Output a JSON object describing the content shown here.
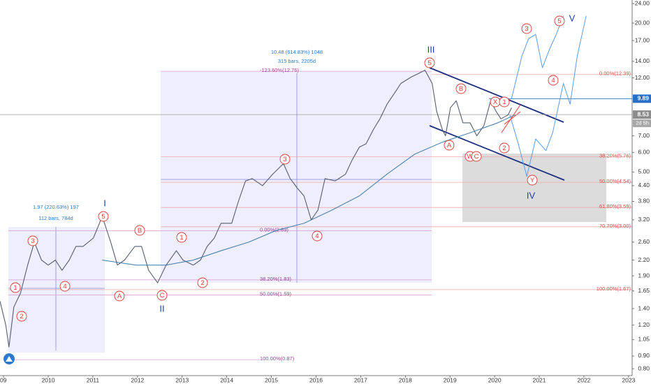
{
  "chart_data": {
    "type": "line",
    "log_y": true,
    "xlim": [
      2008.92,
      2023.08
    ],
    "ylim": [
      0.75,
      24.8
    ],
    "xticks": [
      {
        "value": 2009,
        "label": "09"
      },
      2010,
      2011,
      2012,
      2013,
      2014,
      2015,
      2016,
      2017,
      2018,
      2019,
      2020,
      2021,
      2022,
      2023
    ],
    "yticks": [
      {
        "value": 24,
        "label": "24.00"
      },
      {
        "value": 20,
        "label": "20.00"
      },
      {
        "value": 17,
        "label": "17.00"
      },
      {
        "value": 14,
        "label": "14.00"
      },
      {
        "value": 12,
        "label": "12.00"
      },
      {
        "value": 7,
        "label": "7.00"
      },
      {
        "value": 6,
        "label": "6.00"
      },
      {
        "value": 5,
        "label": "5.00"
      },
      {
        "value": 4.4,
        "label": "4.40"
      },
      {
        "value": 3.8,
        "label": "3.80"
      },
      {
        "value": 3.2,
        "label": "3.20"
      },
      {
        "value": 2.6,
        "label": "2.60"
      },
      {
        "value": 2.2,
        "label": "2.20"
      },
      {
        "value": 1.9,
        "label": "1.90"
      },
      {
        "value": 1.65,
        "label": "1.65"
      },
      {
        "value": 1.4,
        "label": "1.40"
      },
      {
        "value": 1.2,
        "label": "1.20"
      },
      {
        "value": 1.05,
        "label": "1.05"
      },
      {
        "value": 0.9,
        "label": "0.90"
      },
      {
        "value": 0.8,
        "label": "0.80"
      }
    ],
    "series": [
      {
        "color": "#555d70",
        "x": [
          2008.92,
          2009.05,
          2009.12,
          2009.23,
          2009.38,
          2009.54,
          2009.69,
          2009.85,
          2010.0,
          2010.16,
          2010.31,
          2010.47,
          2010.62,
          2010.78,
          2011.01,
          2011.21,
          2011.4,
          2011.55,
          2011.71,
          2011.94,
          2012.09,
          2012.25,
          2012.45,
          2012.64,
          2012.87,
          2013.02,
          2013.25,
          2013.41,
          2013.56,
          2013.72,
          2013.87,
          2014.11,
          2014.26,
          2014.42,
          2014.57,
          2014.8,
          2015.03,
          2015.27,
          2015.42,
          2015.58,
          2015.73,
          2015.89,
          2016.04,
          2016.2,
          2016.43,
          2016.66,
          2016.81,
          2016.97,
          2017.12,
          2017.28,
          2017.43,
          2017.59,
          2017.74,
          2017.9,
          2018.13,
          2018.29,
          2018.44,
          2018.6,
          2018.7,
          2018.83,
          2018.9,
          2019.01,
          2019.14,
          2019.29,
          2019.45,
          2019.6,
          2019.76,
          2019.91,
          2020.03,
          2020.14,
          2020.3,
          2020.38
        ],
        "values": [
          1.5,
          1.2,
          0.98,
          1.42,
          1.62,
          2.1,
          2.6,
          2.2,
          2.1,
          2.2,
          2.0,
          2.2,
          2.5,
          2.5,
          2.7,
          3.3,
          2.6,
          2.1,
          2.2,
          2.5,
          2.5,
          2.0,
          1.78,
          2.1,
          2.4,
          2.2,
          2.1,
          2.2,
          2.5,
          2.7,
          3.1,
          3.1,
          3.8,
          4.6,
          4.7,
          4.4,
          4.9,
          5.4,
          4.7,
          4.3,
          4.0,
          3.2,
          3.5,
          4.7,
          4.6,
          4.9,
          5.6,
          6.3,
          6.5,
          7.4,
          8.2,
          9.4,
          10.3,
          11.4,
          12.1,
          12.5,
          12.9,
          11.4,
          8.8,
          7.4,
          7.0,
          9.1,
          9.7,
          7.9,
          7.9,
          7.0,
          7.7,
          9.7,
          8.8,
          8.2,
          8.5,
          9.1
        ]
      },
      {
        "color": "#3b78a8",
        "x": [
          2011.21,
          2011.97,
          2012.64,
          2013.25,
          2013.87,
          2014.49,
          2015.11,
          2015.73,
          2016.35,
          2016.97,
          2017.59,
          2018.21,
          2018.83,
          2019.45,
          2020.07,
          2020.45
        ],
        "values": [
          2.2,
          2.1,
          2.1,
          2.2,
          2.4,
          2.6,
          2.9,
          3.1,
          3.5,
          4.0,
          4.9,
          5.9,
          6.6,
          7.2,
          7.9,
          8.5
        ]
      },
      {
        "color": "#5a9be6",
        "x": [
          2020.38,
          2020.61,
          2020.76,
          2020.92,
          2021.07,
          2021.23,
          2021.38,
          2021.54
        ],
        "values": [
          9.9,
          14.7,
          17.3,
          18.0,
          13.2,
          15.7,
          18.0,
          21.4
        ]
      },
      {
        "color": "#5a9be6",
        "x": [
          2020.34,
          2020.53,
          2020.72,
          2020.92,
          2021.15,
          2021.3,
          2021.54,
          2021.69,
          2021.85,
          2022.05
        ],
        "values": [
          8.5,
          6.5,
          4.8,
          6.8,
          6.1,
          7.2,
          11.4,
          9.4,
          14.7,
          21.4
        ]
      }
    ],
    "fib_levels": [
      {
        "value": 12.76,
        "label": "-123.60%(12.76)"
      },
      {
        "value": 2.89,
        "label": "0.00%(2.89)"
      },
      {
        "value": 1.83,
        "label": "38.20%(1.83)"
      },
      {
        "value": 1.59,
        "label": "50.00%(1.59)"
      },
      {
        "value": 0.87,
        "label": "100.00%(0.87)"
      },
      {
        "value": 12.39,
        "label": "0.00%(12.39)"
      },
      {
        "value": 5.76,
        "label": "38.20%(5.76)"
      },
      {
        "value": 4.54,
        "label": "50.00%(4.54)"
      },
      {
        "value": 3.59,
        "label": "61.80%(3.59)"
      },
      {
        "value": 3.0,
        "label": "70.70%(3.00)"
      },
      {
        "value": 1.67,
        "label": "100.00%(1.67)"
      }
    ],
    "measurements": [
      "10.48 (614.83%) 1048",
      "315 bars, 2205d",
      "1.97 (220.63%) 197",
      "112 bars, 784d"
    ],
    "wave_labels": [
      "1",
      "2",
      "3",
      "4",
      "5",
      "A",
      "B",
      "C",
      "1",
      "2",
      "3",
      "4",
      "5",
      "A",
      "B",
      "W",
      "C",
      "X",
      "1",
      "2",
      "Y",
      "3",
      "4",
      "5"
    ],
    "degree_labels": [
      "I",
      "II",
      "III",
      "IV",
      "V"
    ],
    "last_price": 9.89,
    "prev_price": 8.53,
    "countdown": "2d 5h"
  }
}
